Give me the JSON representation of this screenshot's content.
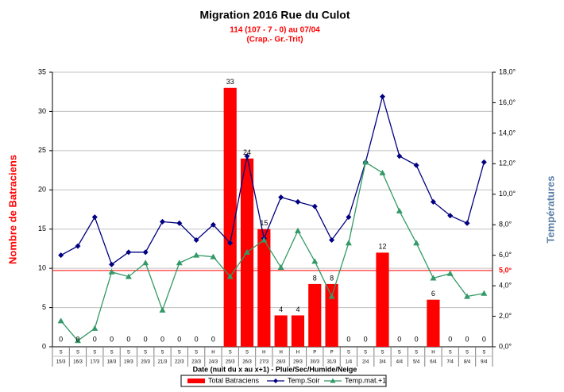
{
  "chart_data": {
    "type": "bar",
    "title": "Migration  2016 Rue du Culot",
    "subtitle": [
      "114 (107 - 7 - 0) au 07/04",
      "(Crap.- Gr.-Trit)"
    ],
    "xlabel": "Date (nuit du x au x+1) - Pluie/Sec/Humide/Neige",
    "ylabel": "Nombre de Batraciens",
    "y2label": "Températures",
    "categories": [
      "15/3",
      "16/3",
      "17/3",
      "18/3",
      "19/3",
      "20/3",
      "21/3",
      "22/3",
      "23/3",
      "24/3",
      "25/3",
      "26/3",
      "27/3",
      "28/3",
      "29/3",
      "30/3",
      "31/3",
      "1/4",
      "2/4",
      "3/4",
      "4/4",
      "5/4",
      "6/4",
      "7/4",
      "8/4",
      "9/4"
    ],
    "weather": [
      "S",
      "S",
      "S",
      "S",
      "S",
      "S",
      "S",
      "S",
      "S",
      "H",
      "S",
      "S",
      "H",
      "H",
      "H",
      "P",
      "P",
      "S",
      "S",
      "S",
      "S",
      "S",
      "H",
      "S",
      "S",
      "S"
    ],
    "series": [
      {
        "name": "Total Batraciens",
        "type": "bar",
        "color": "#ff0000",
        "values": [
          0,
          0,
          0,
          0,
          0,
          0,
          0,
          0,
          0,
          0,
          33,
          24,
          15,
          4,
          4,
          8,
          8,
          0,
          0,
          12,
          0,
          0,
          6,
          0,
          0,
          0
        ]
      },
      {
        "name": "Temp.Soir",
        "type": "line",
        "axis": "y2",
        "color": "#000080",
        "marker": "diamond",
        "values": [
          6.0,
          6.6,
          8.5,
          5.4,
          6.2,
          6.2,
          8.2,
          8.1,
          7.0,
          8.0,
          6.8,
          12.5,
          7.1,
          9.8,
          9.5,
          9.2,
          7.0,
          8.5,
          12.1,
          16.4,
          12.5,
          11.9,
          9.5,
          8.6,
          8.1,
          12.1
        ]
      },
      {
        "name": "Temp.mat.+1",
        "type": "line",
        "axis": "y2",
        "color": "#339966",
        "marker": "triangle",
        "values": [
          1.7,
          0.4,
          1.2,
          4.9,
          4.6,
          5.5,
          2.4,
          5.5,
          6.0,
          5.9,
          4.6,
          6.2,
          7.0,
          5.2,
          7.6,
          5.6,
          3.3,
          6.8,
          12.1,
          11.4,
          8.9,
          6.8,
          4.5,
          4.8,
          3.3,
          3.5
        ]
      }
    ],
    "ylim": [
      0,
      35
    ],
    "yticks": [
      0,
      5,
      10,
      15,
      20,
      25,
      30,
      35
    ],
    "y2lim": [
      0,
      18
    ],
    "y2ticks": [
      {
        "value": 0,
        "label": "0,0°"
      },
      {
        "value": 2,
        "label": "2,0°"
      },
      {
        "value": 4,
        "label": "4,0°"
      },
      {
        "value": 6,
        "label": "6,0°"
      },
      {
        "value": 8,
        "label": "8,0°"
      },
      {
        "value": 10,
        "label": "10,0°"
      },
      {
        "value": 12,
        "label": "12,0°"
      },
      {
        "value": 14,
        "label": "14,0°"
      },
      {
        "value": 16,
        "label": "16,0°"
      },
      {
        "value": 18,
        "label": "18,0°"
      }
    ],
    "ref_line": {
      "value": 5,
      "label": "5,0°",
      "axis": "y2",
      "color": "#ff0000"
    },
    "grid": true,
    "legend": "bottom"
  }
}
